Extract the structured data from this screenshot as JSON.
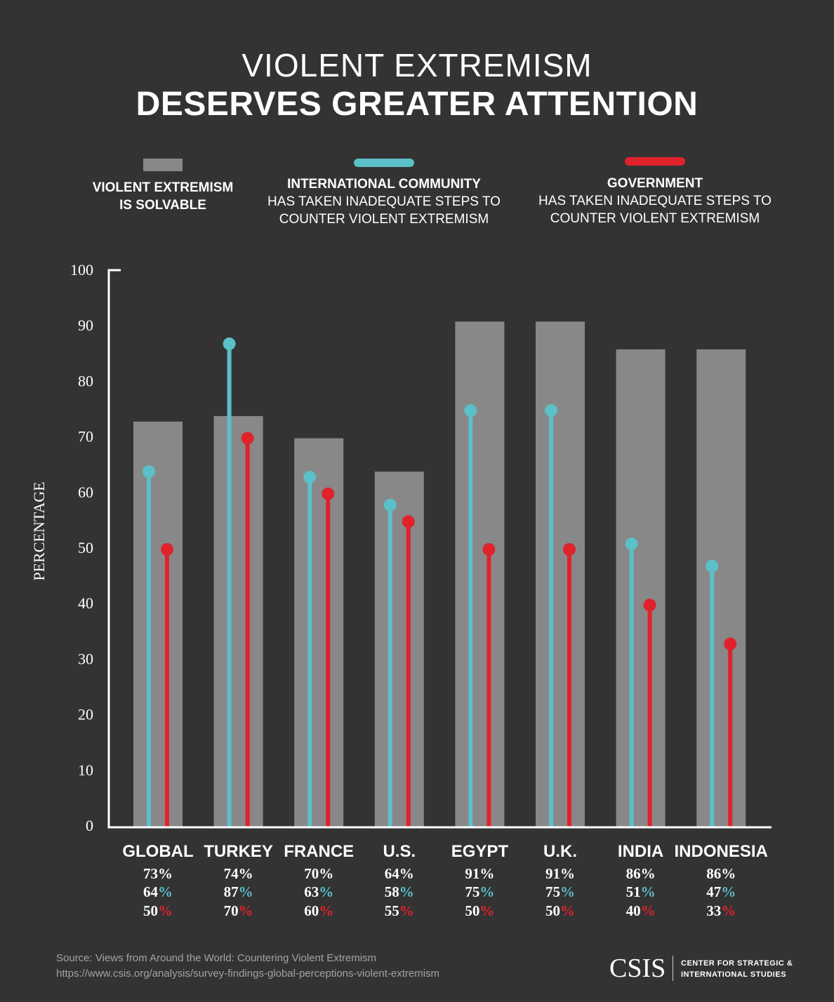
{
  "header": {
    "title_line1": "VIOLENT EXTREMISM",
    "title_line2": "DESERVES GREATER ATTENTION"
  },
  "legend": [
    {
      "bold": "VIOLENT EXTREMISM",
      "bold2": "IS SOLVABLE",
      "norm1": "",
      "norm2": ""
    },
    {
      "bold": "INTERNATIONAL COMMUNITY",
      "bold2": "",
      "norm1": "HAS TAKEN INADEQUATE STEPS TO",
      "norm2": "COUNTER VIOLENT EXTREMISM"
    },
    {
      "bold": "GOVERNMENT",
      "bold2": "",
      "norm1": "HAS TAKEN INADEQUATE STEPS TO",
      "norm2": "COUNTER VIOLENT EXTREMISM"
    }
  ],
  "colors": {
    "background": "#333333",
    "bar": "#888888",
    "international": "#5bc0c8",
    "government": "#e0222b",
    "axis": "#ffffff"
  },
  "chart_data": {
    "type": "bar",
    "ylabel": "PERCENTAGE",
    "ylim": [
      0,
      100
    ],
    "yticks": [
      "0",
      "10",
      "20",
      "30",
      "40",
      "50",
      "60",
      "70",
      "80",
      "90",
      "100"
    ],
    "categories": [
      "GLOBAL",
      "TURKEY",
      "FRANCE",
      "U.S.",
      "EGYPT",
      "U.K.",
      "INDIA",
      "INDONESIA"
    ],
    "series": [
      {
        "name": "VIOLENT EXTREMISM IS SOLVABLE",
        "mark": "bar",
        "values": [
          73,
          74,
          70,
          64,
          91,
          91,
          86,
          86
        ]
      },
      {
        "name": "INTERNATIONAL COMMUNITY HAS TAKEN INADEQUATE STEPS TO COUNTER VIOLENT EXTREMISM",
        "mark": "lollipop",
        "values": [
          64,
          87,
          63,
          58,
          75,
          75,
          51,
          47
        ]
      },
      {
        "name": "GOVERNMENT HAS TAKEN INADEQUATE STEPS TO COUNTER VIOLENT EXTREMISM",
        "mark": "lollipop",
        "values": [
          50,
          70,
          60,
          55,
          50,
          50,
          40,
          33
        ]
      }
    ],
    "value_labels": [
      [
        "73%",
        "74%",
        "70%",
        "64%",
        "91%",
        "91%",
        "86%",
        "86%"
      ],
      [
        "64",
        "87",
        "63",
        "58",
        "75",
        "75",
        "51",
        "47"
      ],
      [
        "50",
        "70",
        "60",
        "55",
        "50",
        "50",
        "40",
        "33"
      ]
    ],
    "percent_sign": "%",
    "grid": false,
    "legend_position": "top"
  },
  "footer": {
    "source_line1": "Source: Views from Around the World: Countering Violent Extremism",
    "source_line2": "https://www.csis.org/analysis/survey-findings-global-perceptions-violent-extremism",
    "logo_name": "CSIS",
    "logo_line1": "CENTER FOR STRATEGIC &",
    "logo_line2": "INTERNATIONAL STUDIES"
  }
}
